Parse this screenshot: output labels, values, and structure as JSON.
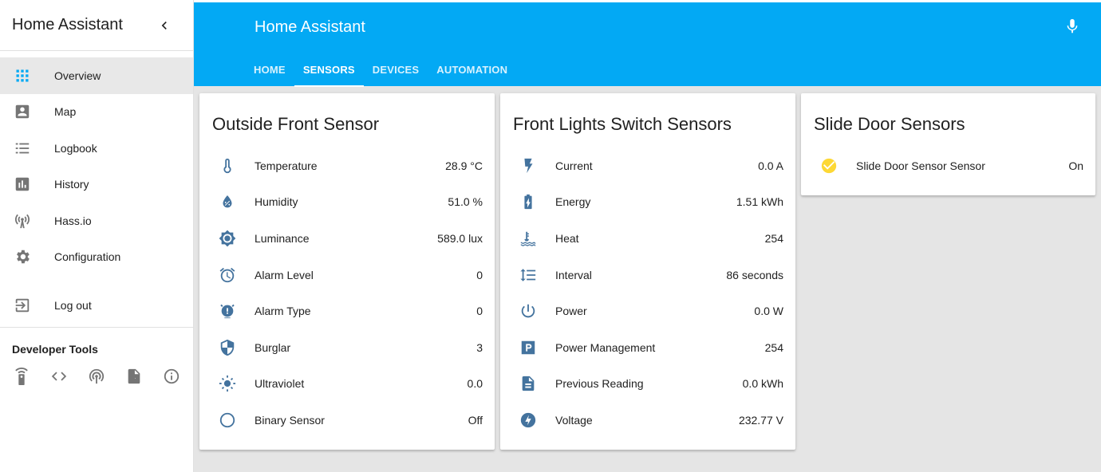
{
  "sidebar": {
    "title": "Home Assistant",
    "items": [
      {
        "label": "Overview",
        "icon": "grid-icon"
      },
      {
        "label": "Map",
        "icon": "account-box-icon"
      },
      {
        "label": "Logbook",
        "icon": "list-icon"
      },
      {
        "label": "History",
        "icon": "chart-box-icon"
      },
      {
        "label": "Hass.io",
        "icon": "antenna-icon"
      },
      {
        "label": "Configuration",
        "icon": "gear-icon"
      },
      {
        "label": "Log out",
        "icon": "logout-icon"
      }
    ],
    "developer_tools": {
      "title": "Developer Tools",
      "icons": [
        "remote-icon",
        "code-icon",
        "broadcast-icon",
        "file-export-icon",
        "info-icon"
      ]
    }
  },
  "header": {
    "title": "Home Assistant",
    "tabs": [
      {
        "label": "Home"
      },
      {
        "label": "Sensors"
      },
      {
        "label": "Devices"
      },
      {
        "label": "Automation"
      }
    ],
    "active_tab": "Sensors"
  },
  "cards": {
    "outside": {
      "title": "Outside Front Sensor",
      "rows": [
        {
          "name": "Temperature",
          "value": "28.9 °C",
          "icon": "thermometer-icon"
        },
        {
          "name": "Humidity",
          "value": "51.0 %",
          "icon": "water-percent-icon"
        },
        {
          "name": "Luminance",
          "value": "589.0 lux",
          "icon": "brightness-icon"
        },
        {
          "name": "Alarm Level",
          "value": "0",
          "icon": "alarm-icon"
        },
        {
          "name": "Alarm Type",
          "value": "0",
          "icon": "alarm-bell-icon"
        },
        {
          "name": "Burglar",
          "value": "3",
          "icon": "shield-icon"
        },
        {
          "name": "Ultraviolet",
          "value": "0.0",
          "icon": "sun-icon"
        },
        {
          "name": "Binary Sensor",
          "value": "Off",
          "icon": "circle-outline-icon"
        }
      ]
    },
    "front_lights": {
      "title": "Front Lights Switch Sensors",
      "rows": [
        {
          "name": "Current",
          "value": "0.0 A",
          "icon": "flash-icon"
        },
        {
          "name": "Energy",
          "value": "1.51 kWh",
          "icon": "battery-charging-icon"
        },
        {
          "name": "Heat",
          "value": "254",
          "icon": "heat-icon"
        },
        {
          "name": "Interval",
          "value": "86 seconds",
          "icon": "line-spacing-icon"
        },
        {
          "name": "Power",
          "value": "0.0 W",
          "icon": "power-icon"
        },
        {
          "name": "Power Management",
          "value": "254",
          "icon": "parking-icon"
        },
        {
          "name": "Previous Reading",
          "value": "0.0 kWh",
          "icon": "file-document-icon"
        },
        {
          "name": "Voltage",
          "value": "232.77 V",
          "icon": "flash-circle-icon"
        }
      ]
    },
    "slide_door": {
      "title": "Slide Door Sensors",
      "rows": [
        {
          "name": "Slide Door Sensor Sensor",
          "value": "On",
          "icon": "check-circle-icon"
        }
      ]
    }
  },
  "colors": {
    "header": "#03a9f4",
    "icon": "#44739e",
    "active_check": "#fdd835"
  }
}
